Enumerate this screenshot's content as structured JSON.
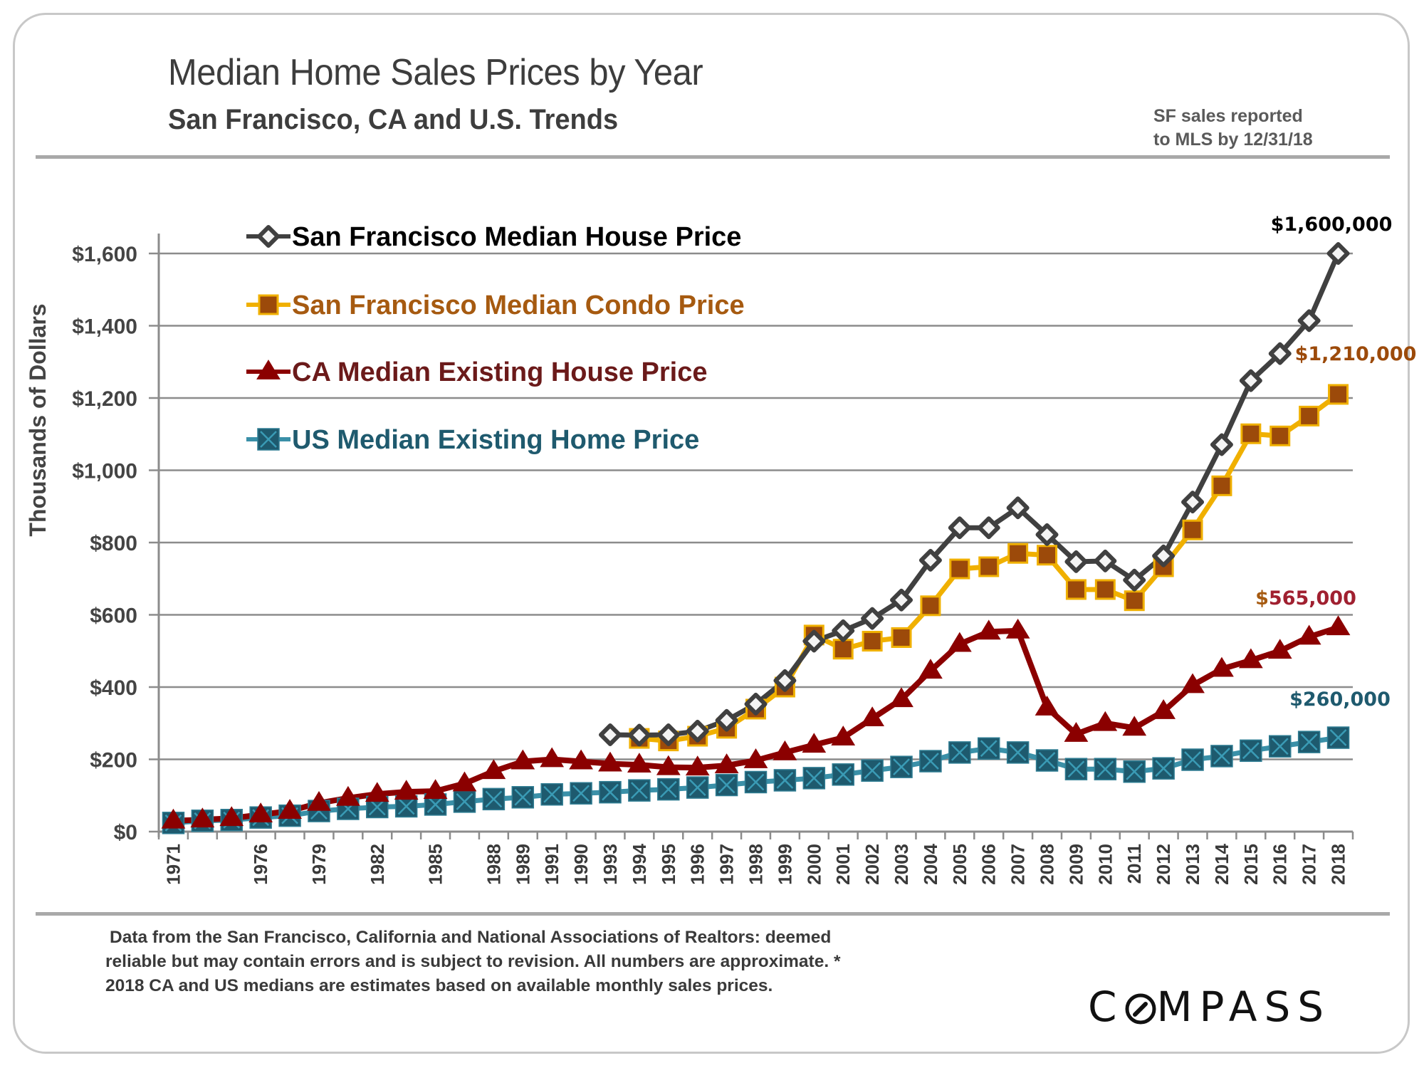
{
  "header": {
    "title": "Median Home Sales Prices by Year",
    "subtitle": "San Francisco, CA and U.S. Trends",
    "note_line1": "SF sales reported",
    "note_line2": "to MLS by 12/31/18"
  },
  "footer": {
    "line1": "Data from the San Francisco, California and National Associations of Realtors:  deemed",
    "line2": "reliable but may contain errors and is subject to revision. All numbers are approximate. *",
    "line3": "2018 CA and US medians are estimates based on available monthly sales prices.",
    "logo_left": "C",
    "logo_right": "MPASS",
    "logo_icon": "compass-o-icon"
  },
  "chart_data": {
    "type": "line",
    "title": "Median Home Sales Prices by Year",
    "subtitle": "San Francisco, CA and U.S. Trends",
    "xlabel": "",
    "ylabel": "Thousands of Dollars",
    "ylim": [
      0,
      1600
    ],
    "yticks": [
      0,
      200,
      400,
      600,
      800,
      1000,
      1200,
      1400,
      1600
    ],
    "ytick_labels": [
      "$0",
      "$200",
      "$400",
      "$600",
      "$800",
      "$1,000",
      "$1,200",
      "$1,400",
      "$1,600"
    ],
    "grid": true,
    "legend_position": "top-left",
    "categories": [
      "1971",
      "",
      "",
      "1976",
      "",
      "1979",
      "",
      "1982",
      "",
      "1985",
      "",
      "1988",
      "1989",
      "1991",
      "1990",
      "1993",
      "1994",
      "1995",
      "1996",
      "1997",
      "1998",
      "1999",
      "2000",
      "2001",
      "2002",
      "2003",
      "2004",
      "2005",
      "2006",
      "2007",
      "2008",
      "2009",
      "2010",
      "2011",
      "2012",
      "2013",
      "2014",
      "2015",
      "2016",
      "2017",
      "2018"
    ],
    "series": [
      {
        "name": "San Francisco Median House Price",
        "color": "#404040",
        "text_color": "#000000",
        "marker": "diamond",
        "values": [
          null,
          null,
          null,
          null,
          null,
          null,
          null,
          null,
          null,
          null,
          null,
          null,
          null,
          null,
          null,
          268,
          267,
          268,
          278,
          308,
          353,
          418,
          527,
          556,
          590,
          641,
          751,
          841,
          841,
          896,
          822,
          747,
          749,
          696,
          763,
          912,
          1071,
          1248,
          1323,
          1414,
          1600
        ]
      },
      {
        "name": "San Francisco Median Condo Price",
        "color": "#f0b000",
        "marker_fill": "#9c4a0a",
        "text_color": "#a65a10",
        "marker": "square",
        "values": [
          null,
          null,
          null,
          null,
          null,
          null,
          null,
          null,
          null,
          null,
          null,
          null,
          null,
          null,
          null,
          null,
          258,
          251,
          264,
          286,
          339,
          400,
          544,
          505,
          527,
          537,
          625,
          727,
          733,
          770,
          765,
          670,
          670,
          639,
          733,
          835,
          957,
          1101,
          1095,
          1150,
          1210
        ]
      },
      {
        "name": "CA Median Existing House Price",
        "color": "#8b0000",
        "text_color": "#6b1a1a",
        "marker": "triangle",
        "values": [
          30,
          33,
          37,
          47,
          57,
          79,
          93,
          104,
          110,
          112,
          133,
          167,
          194,
          200,
          194,
          188,
          185,
          178,
          177,
          183,
          197,
          219,
          240,
          260,
          313,
          366,
          445,
          519,
          553,
          556,
          343,
          270,
          300,
          287,
          333,
          405,
          450,
          474,
          500,
          539,
          565
        ]
      },
      {
        "name": "US Median Existing Home Price",
        "color": "#3a90a8",
        "marker_fill": "#1e5a6e",
        "text_color": "#1f5a6e",
        "marker": "x-square",
        "values": [
          24,
          30,
          32,
          39,
          44,
          57,
          63,
          68,
          70,
          75,
          83,
          90,
          95,
          103,
          106,
          109,
          114,
          117,
          122,
          129,
          137,
          142,
          148,
          158,
          169,
          179,
          195,
          219,
          230,
          219,
          197,
          173,
          173,
          166,
          175,
          199,
          209,
          224,
          236,
          248,
          260
        ]
      }
    ],
    "annotations": [
      {
        "text": "$1,600,000",
        "series": 0,
        "color": "#000000"
      },
      {
        "text": "$1,210,000",
        "series": 1,
        "color": "#9c4a0a"
      },
      {
        "text": "$565,000",
        "series": 2,
        "color": "#a02030",
        "dollar_color": "#a65a10"
      },
      {
        "text": "$260,000",
        "series": 3,
        "color": "#1f5a6e"
      }
    ]
  }
}
